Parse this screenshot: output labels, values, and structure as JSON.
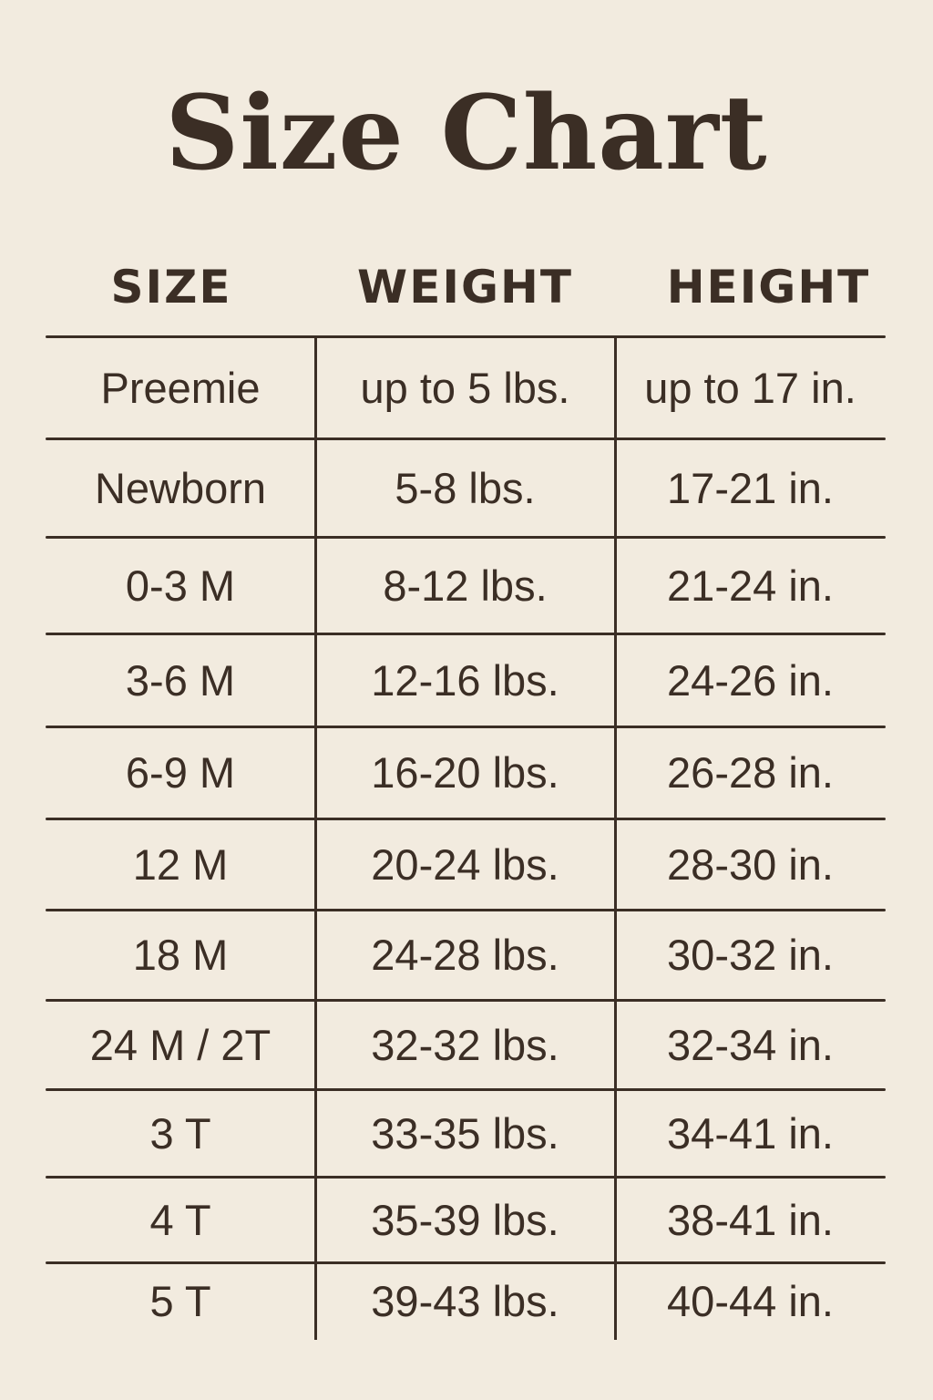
{
  "title": "Size Chart",
  "columns": [
    "SIZE",
    "WEIGHT",
    "HEIGHT"
  ],
  "rows": [
    [
      "Preemie",
      "up to 5 lbs.",
      "up to 17 in."
    ],
    [
      "Newborn",
      "5-8 lbs.",
      "17-21 in."
    ],
    [
      "0-3 M",
      "8-12 lbs.",
      "21-24 in."
    ],
    [
      "3-6 M",
      "12-16 lbs.",
      "24-26 in."
    ],
    [
      "6-9 M",
      "16-20 lbs.",
      "26-28 in."
    ],
    [
      "12 M",
      "20-24 lbs.",
      "28-30 in."
    ],
    [
      "18 M",
      "24-28 lbs.",
      "30-32 in."
    ],
    [
      "24 M / 2T",
      "32-32 lbs.",
      "32-34 in."
    ],
    [
      "3 T",
      "33-35 lbs.",
      "34-41 in."
    ],
    [
      "4 T",
      "35-39 lbs.",
      "38-41 in."
    ],
    [
      "5 T",
      "39-43 lbs.",
      "40-44 in."
    ]
  ],
  "colors": {
    "background": "#f2ebdf",
    "text": "#3b2e25"
  }
}
